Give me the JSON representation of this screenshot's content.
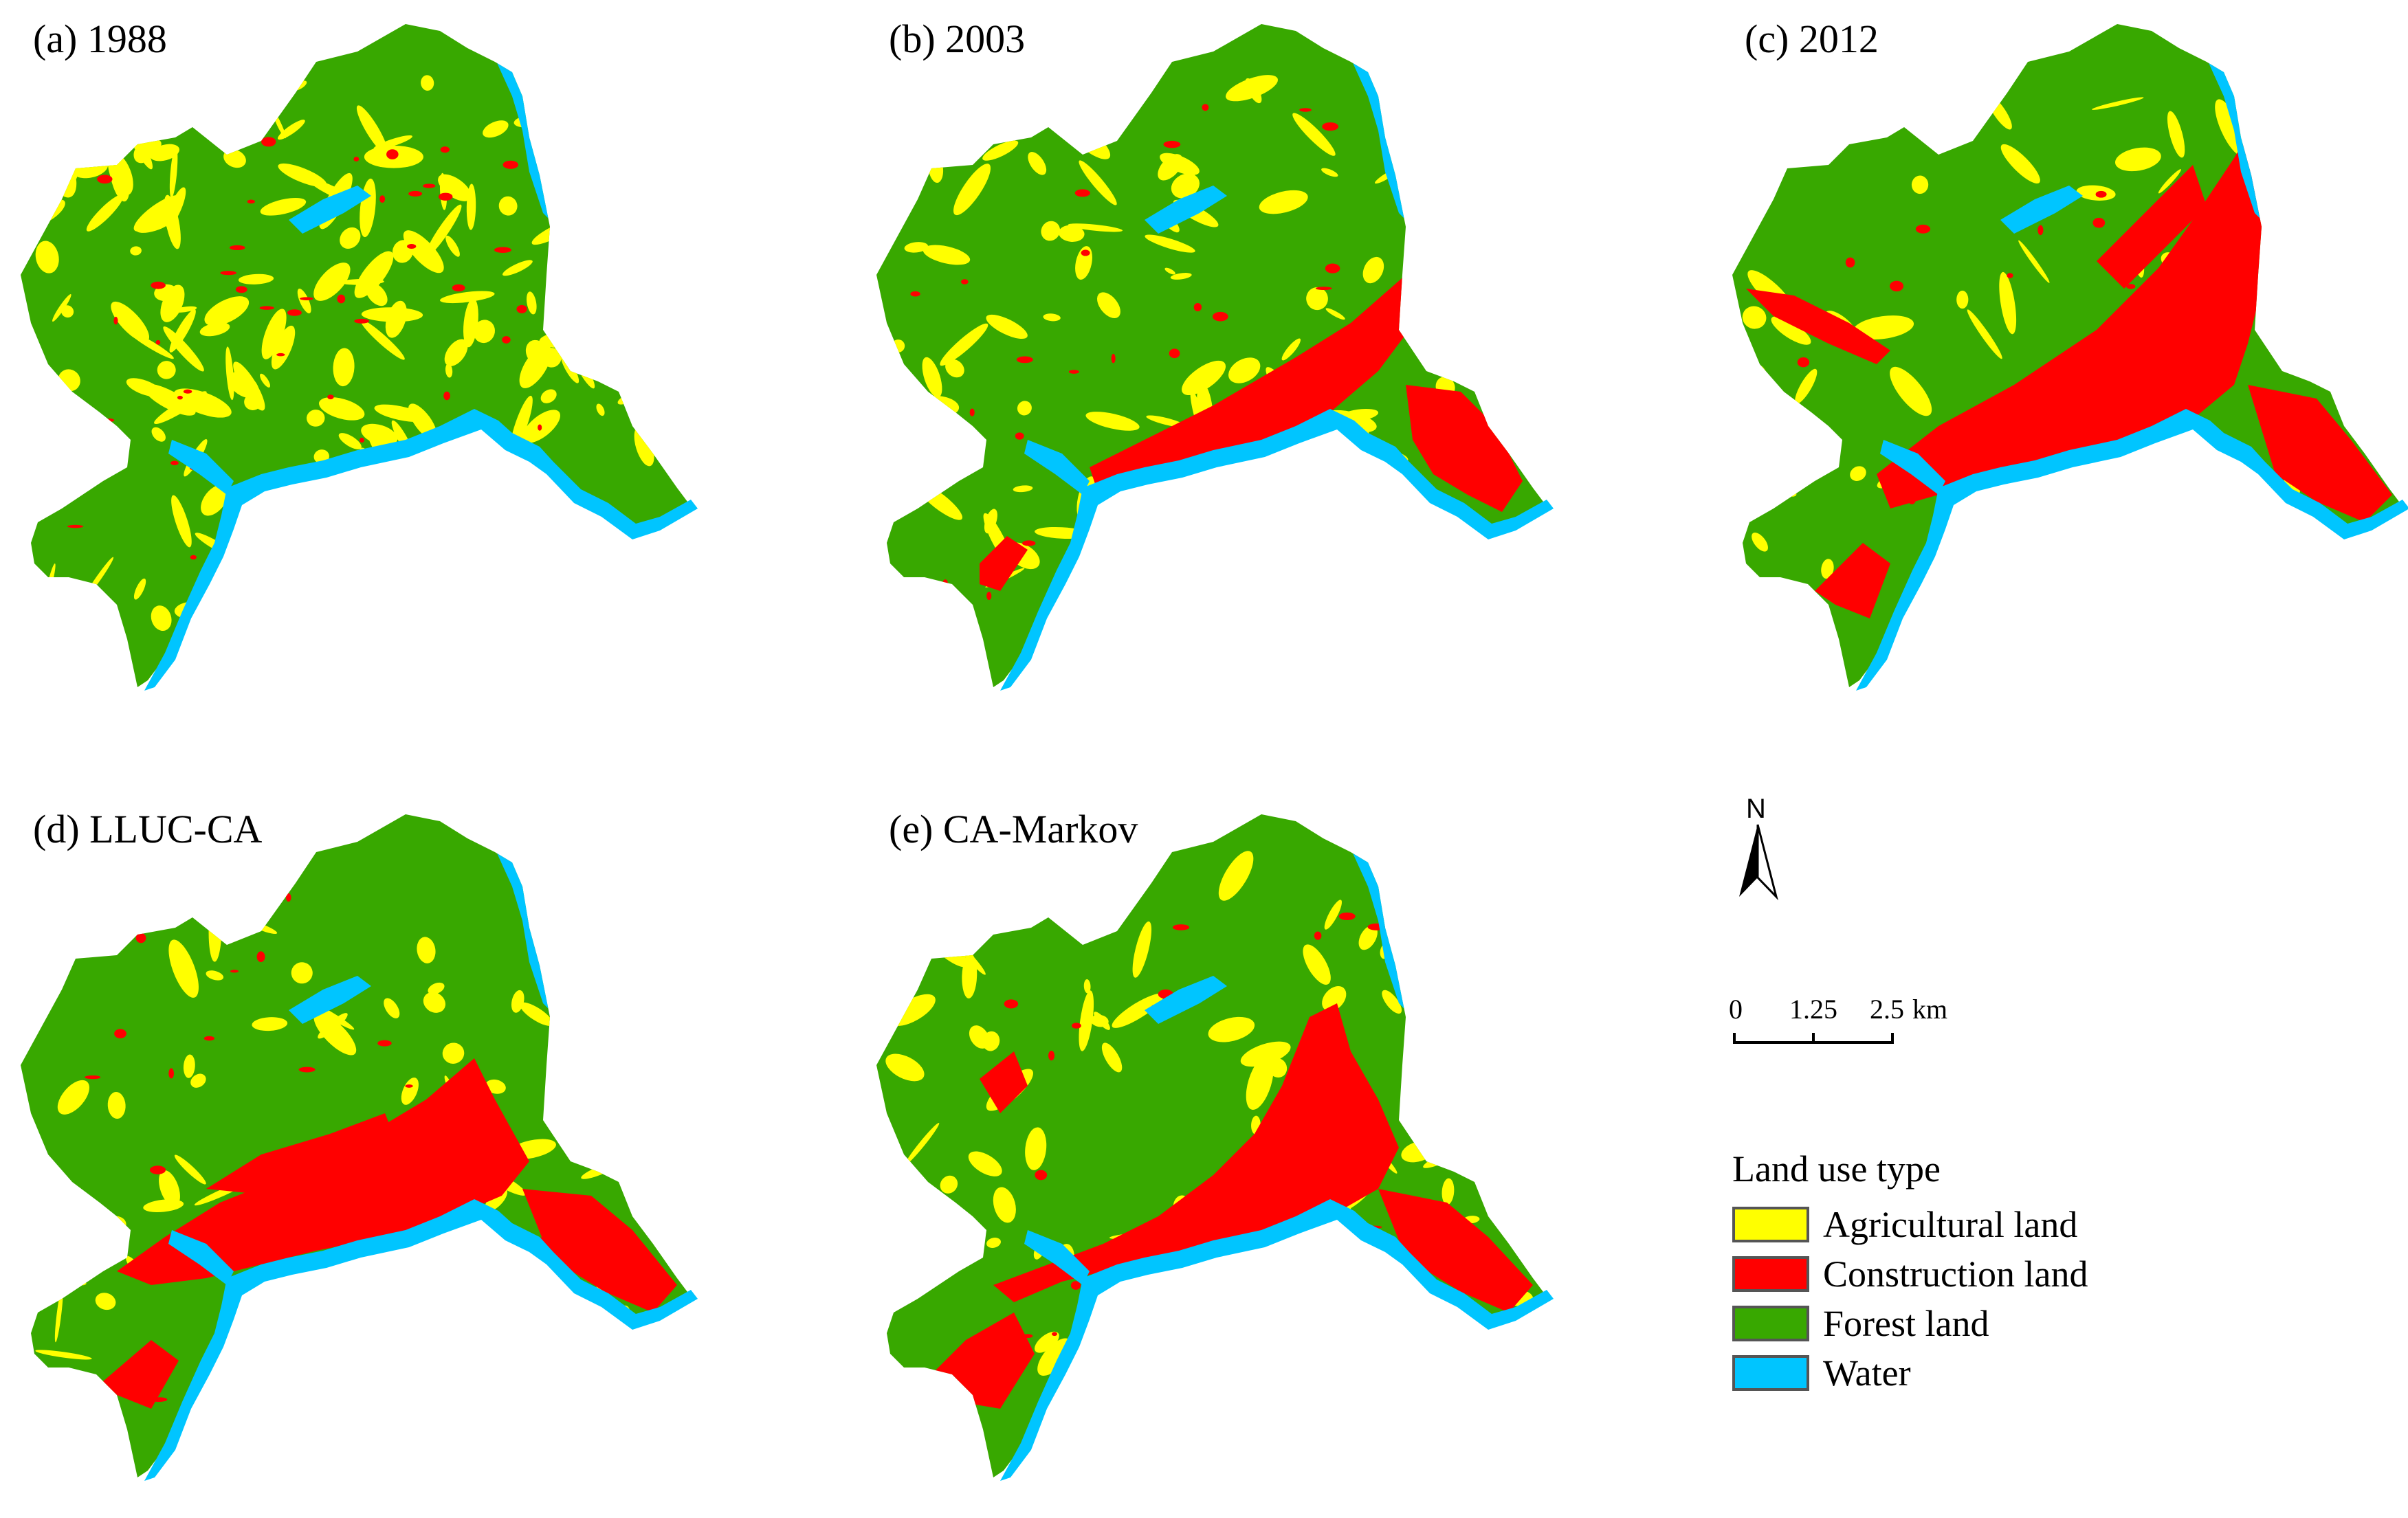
{
  "panels": [
    {
      "id": "a",
      "label": "(a) 1988"
    },
    {
      "id": "b",
      "label": "(b) 2003"
    },
    {
      "id": "c",
      "label": "(c) 2012"
    },
    {
      "id": "d",
      "label": "(d) LLUC-CA"
    },
    {
      "id": "e",
      "label": "(e) CA-Markov"
    }
  ],
  "north_arrow": {
    "label": "N"
  },
  "scale_bar": {
    "ticks": [
      "0",
      "1.25",
      "2.5"
    ],
    "unit": "km"
  },
  "legend": {
    "title": "Land use type",
    "items": [
      {
        "label": "Agricultural land",
        "color": "#FFFF00"
      },
      {
        "label": "Construction land",
        "color": "#FF0000"
      },
      {
        "label": "Forest land",
        "color": "#38A800"
      },
      {
        "label": "Water",
        "color": "#00C5FF"
      }
    ]
  },
  "colors": {
    "agricultural": "#FFFF00",
    "construction": "#FF0000",
    "forest": "#38A800",
    "water": "#00C5FF"
  }
}
